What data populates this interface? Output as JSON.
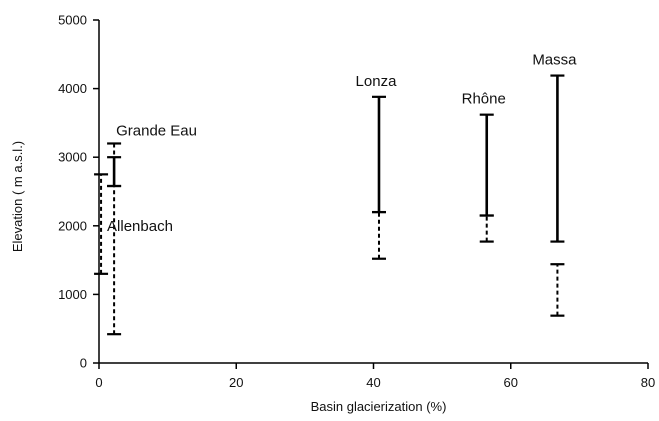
{
  "chart_data": {
    "type": "range-bar",
    "xlabel": "Basin  glacierization  (%)",
    "ylabel": "Elevation  ( m a.s.l.)",
    "xlim": [
      0,
      80
    ],
    "ylim": [
      0,
      5000
    ],
    "xticks": [
      0,
      20,
      40,
      60,
      80
    ],
    "yticks": [
      0,
      1000,
      2000,
      3000,
      4000,
      5000
    ],
    "legend": "none",
    "grid": false,
    "basins": [
      {
        "name": "Grande Eau",
        "x": 2.2,
        "glacierized_range": [
          2580,
          3000
        ],
        "unglacierized_range": [
          420,
          2580
        ],
        "upper_dashed_top": 3200,
        "label_pos": "right"
      },
      {
        "name": "Allenbach",
        "x": 0.3,
        "glacierized_range": null,
        "unglacierized_range": [
          1300,
          2750
        ],
        "label_pos": "right"
      },
      {
        "name": "Lonza",
        "x": 40.8,
        "glacierized_range": [
          2200,
          3880
        ],
        "unglacierized_range": [
          1520,
          2200
        ],
        "label_pos": "top"
      },
      {
        "name": "Rhône",
        "x": 56.5,
        "glacierized_range": [
          2150,
          3620
        ],
        "unglacierized_range": [
          1770,
          2150
        ],
        "label_pos": "top"
      },
      {
        "name": "Massa",
        "x": 66.8,
        "glacierized_range": [
          1770,
          4190
        ],
        "unglacierized_range": [
          690,
          1440
        ],
        "label_pos": "top"
      }
    ]
  }
}
